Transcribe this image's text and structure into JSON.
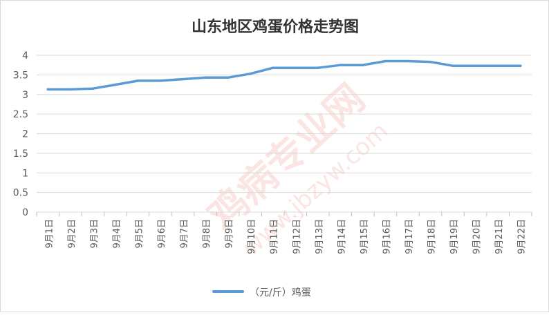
{
  "chart_data": {
    "type": "line",
    "title": "山东地区鸡蛋价格走势图",
    "categories": [
      "9月1日",
      "9月2日",
      "9月3日",
      "9月4日",
      "9月5日",
      "9月6日",
      "9月7日",
      "9月8日",
      "9月9日",
      "9月10日",
      "9月11日",
      "9月12日",
      "9月13日",
      "9月14日",
      "9月15日",
      "9月16日",
      "9月17日",
      "9月18日",
      "9月19日",
      "9月20日",
      "9月21日",
      "9月22日"
    ],
    "series": [
      {
        "name": "（元/斤）鸡蛋",
        "values": [
          3.13,
          3.13,
          3.15,
          3.25,
          3.35,
          3.35,
          3.39,
          3.43,
          3.43,
          3.53,
          3.68,
          3.68,
          3.68,
          3.75,
          3.75,
          3.85,
          3.85,
          3.83,
          3.73,
          3.73,
          3.73,
          3.73
        ],
        "color": "#5b9bd5"
      }
    ],
    "yticks": [
      "0",
      "0.5",
      "1",
      "1.5",
      "2",
      "2.5",
      "3",
      "3.5",
      "4"
    ],
    "ylim": [
      0,
      4
    ],
    "xlabel": "",
    "ylabel": "",
    "grid": true,
    "legend": "bottom"
  },
  "watermark": {
    "text": "鸡病专业网",
    "url": "www.jbzyw.com"
  }
}
